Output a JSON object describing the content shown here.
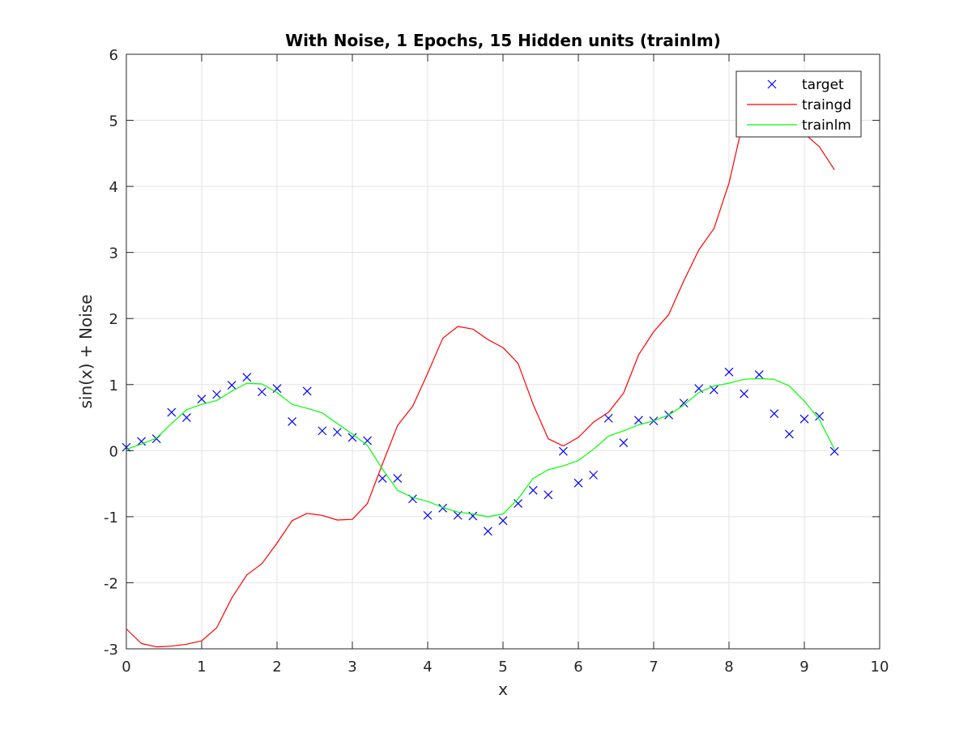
{
  "chart_data": {
    "type": "line",
    "title": "With Noise, 1 Epochs, 15 Hidden units (trainlm)",
    "xlabel": "x",
    "ylabel": "sin(x) + Noise",
    "xlim": [
      0,
      10
    ],
    "ylim": [
      -3,
      6
    ],
    "xticks": [
      0,
      1,
      2,
      3,
      4,
      5,
      6,
      7,
      8,
      9,
      10
    ],
    "yticks": [
      -3,
      -2,
      -1,
      0,
      1,
      2,
      3,
      4,
      5,
      6
    ],
    "grid": true,
    "legend_position": "top-right",
    "x": [
      0,
      0.2,
      0.4,
      0.6,
      0.8,
      1.0,
      1.2,
      1.4,
      1.6,
      1.8,
      2.0,
      2.2,
      2.4,
      2.6,
      2.8,
      3.0,
      3.2,
      3.4,
      3.6,
      3.8,
      4.0,
      4.2,
      4.4,
      4.6,
      4.8,
      5.0,
      5.2,
      5.4,
      5.6,
      5.8,
      6.0,
      6.2,
      6.4,
      6.6,
      6.8,
      7.0,
      7.2,
      7.4,
      7.6,
      7.8,
      8.0,
      8.2,
      8.4,
      8.6,
      8.8,
      9.0,
      9.2,
      9.4
    ],
    "series": [
      {
        "name": "target",
        "style": "marker",
        "color": "#0000ff",
        "values": [
          0.05,
          0.14,
          0.18,
          0.58,
          0.5,
          0.78,
          0.85,
          0.99,
          1.11,
          0.89,
          0.94,
          0.44,
          0.9,
          0.3,
          0.28,
          0.2,
          0.15,
          -0.42,
          -0.42,
          -0.73,
          -0.98,
          -0.87,
          -0.98,
          -0.99,
          -1.22,
          -1.06,
          -0.8,
          -0.6,
          -0.67,
          -0.01,
          -0.49,
          -0.37,
          0.49,
          0.12,
          0.46,
          0.45,
          0.54,
          0.72,
          0.94,
          0.92,
          1.19,
          0.86,
          1.15,
          0.56,
          0.25,
          0.48,
          0.52,
          -0.01
        ]
      },
      {
        "name": "traingd",
        "style": "line",
        "color": "#ff0000",
        "values": [
          -2.7,
          -2.92,
          -2.97,
          -2.96,
          -2.93,
          -2.88,
          -2.68,
          -2.23,
          -1.88,
          -1.71,
          -1.4,
          -1.06,
          -0.95,
          -0.98,
          -1.05,
          -1.04,
          -0.8,
          -0.2,
          0.38,
          0.67,
          1.17,
          1.7,
          1.88,
          1.84,
          1.68,
          1.56,
          1.32,
          0.7,
          0.18,
          0.07,
          0.2,
          0.43,
          0.58,
          0.87,
          1.45,
          1.8,
          2.06,
          2.57,
          3.04,
          3.36,
          4.05,
          5.04,
          5.08,
          5.07,
          4.96,
          4.8,
          4.6,
          4.25
        ]
      },
      {
        "name": "trainlm",
        "style": "line",
        "color": "#00ff00",
        "values": [
          0.02,
          0.1,
          0.19,
          0.41,
          0.62,
          0.7,
          0.76,
          0.9,
          1.02,
          1.01,
          0.88,
          0.7,
          0.64,
          0.57,
          0.41,
          0.25,
          0.08,
          -0.28,
          -0.6,
          -0.71,
          -0.77,
          -0.86,
          -0.93,
          -0.96,
          -1.0,
          -0.96,
          -0.73,
          -0.42,
          -0.29,
          -0.23,
          -0.15,
          0.02,
          0.22,
          0.3,
          0.39,
          0.45,
          0.54,
          0.69,
          0.88,
          0.98,
          1.02,
          1.08,
          1.09,
          1.08,
          0.98,
          0.75,
          0.47,
          0.02
        ]
      }
    ]
  }
}
